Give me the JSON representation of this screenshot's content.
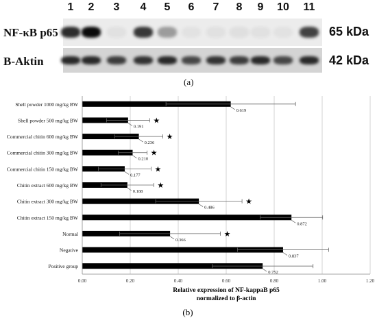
{
  "blot": {
    "lanes": [
      "1",
      "2",
      "3",
      "4",
      "5",
      "6",
      "7",
      "8",
      "9",
      "10",
      "11"
    ],
    "protein_label": "NF-κB p65",
    "protein_kda": "65 kDa",
    "control_label": "B-Aktin",
    "control_kda": "42 kDa",
    "p65_band_intensity": [
      0.85,
      1.0,
      0.05,
      0.8,
      0.35,
      0.04,
      0.05,
      0.06,
      0.05,
      0.04,
      0.75
    ],
    "actin_band_intensity": [
      0.85,
      0.85,
      0.75,
      0.8,
      0.85,
      0.7,
      0.8,
      0.75,
      0.85,
      0.7,
      0.85
    ],
    "panel_label": "(a)"
  },
  "chart_data": {
    "type": "bar",
    "orientation": "horizontal",
    "categories": [
      "Shell powder 1000 mg/kg BW",
      "Shell powder 500 mg/kg BW",
      "Commercial chitin 600 mg/kg BW",
      "Commercial chitin 300 mg/kg BW",
      "Commercial chitin 150 mg/kg BW",
      "Chitin extract 600 mg/kg BW",
      "Chitin extract 300 mg/kg BW",
      "Chitin extract 150 mg/kg BW",
      "Normal",
      "Negative",
      "Positive group"
    ],
    "values": [
      0.619,
      0.191,
      0.236,
      0.21,
      0.177,
      0.188,
      0.486,
      0.872,
      0.366,
      0.837,
      0.752
    ],
    "value_labels": [
      "0.619",
      "0.191",
      "0.236",
      "0.210",
      "0.177",
      "0.188",
      "0.486",
      "0.872",
      "0.366",
      "0.837",
      "0.752"
    ],
    "errors": [
      0.27,
      0.09,
      0.1,
      0.06,
      0.11,
      0.11,
      0.18,
      0.13,
      0.21,
      0.19,
      0.21
    ],
    "significant": [
      false,
      true,
      true,
      true,
      true,
      true,
      true,
      false,
      true,
      false,
      false
    ],
    "star_symbol": "★",
    "xlabel_line1": "Relative expression of NF-kappaB p65",
    "xlabel_line2": "normalized to β-actin",
    "xlim": [
      0,
      1.2
    ],
    "xticks": [
      "0.00",
      "0.20",
      "0.40",
      "0.60",
      "0.80",
      "1.00",
      "1.20"
    ],
    "grid": true,
    "bar_color": "#000000",
    "panel_label": "(b)"
  }
}
